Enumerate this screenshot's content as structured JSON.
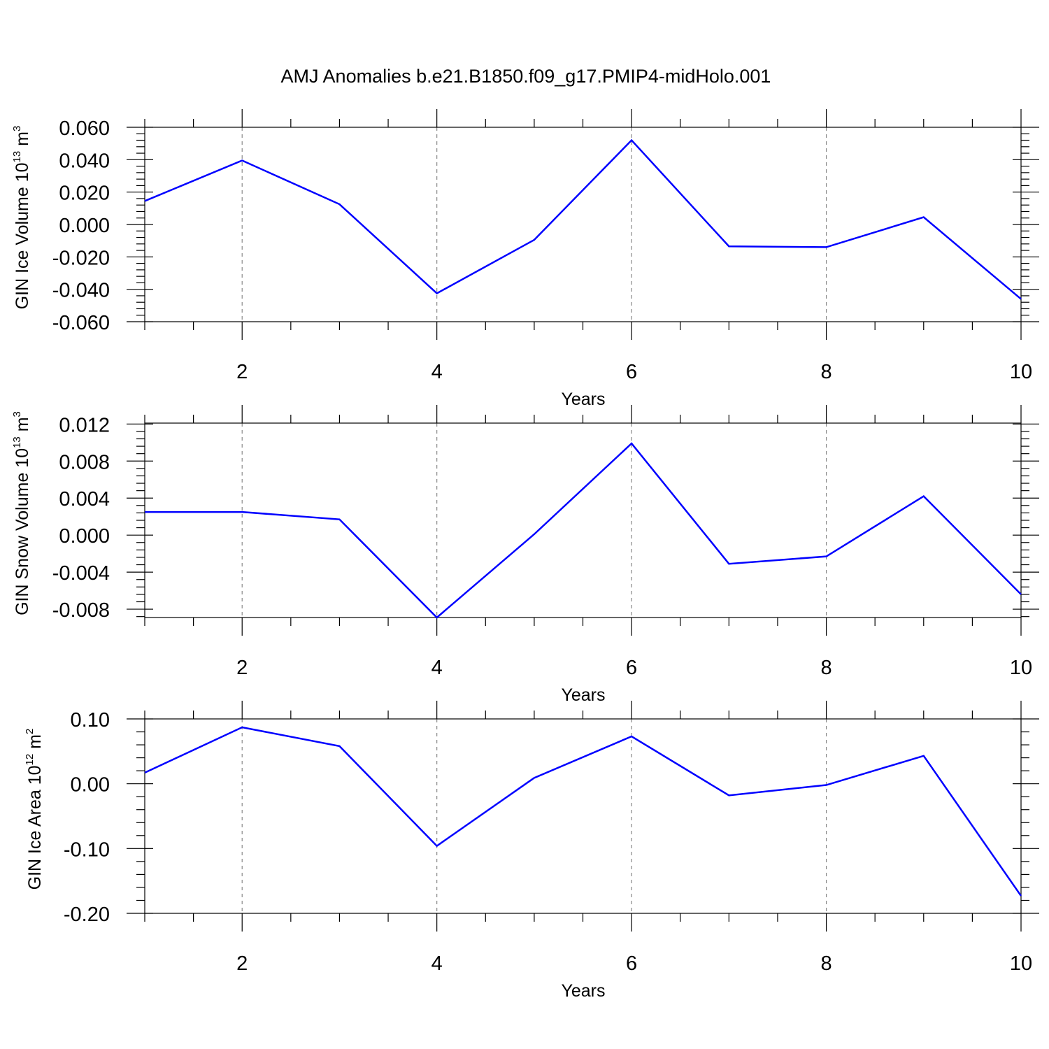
{
  "chart_data": {
    "title": "AMJ Anomalies b.e21.B1850.f09_g17.PMIP4-midHolo.001",
    "panels": [
      {
        "type": "line",
        "ylabel": {
          "text": "GIN Ice Volume 10",
          "sup": "13",
          "unit": " m",
          "unit_sup": "3"
        },
        "xlabel": "Years",
        "x": [
          1,
          2,
          3,
          4,
          5,
          6,
          7,
          8,
          9,
          10
        ],
        "xlim": [
          1,
          10
        ],
        "xticks": [
          2,
          4,
          6,
          8,
          10
        ],
        "xtick_labels": [
          "2",
          "4",
          "6",
          "8",
          "10"
        ],
        "ylim": [
          -0.06,
          0.06
        ],
        "yticks": [
          0.06,
          0.04,
          0.02,
          0.0,
          -0.02,
          -0.04,
          -0.06
        ],
        "ytick_labels": [
          "0.060",
          "0.040",
          "0.020",
          "0.000",
          "-0.020",
          "-0.040",
          "-0.060"
        ],
        "grid": "vertical-dashed",
        "color": "#0000ff",
        "values": [
          0.0145,
          0.0395,
          0.0125,
          -0.0425,
          -0.0095,
          0.052,
          -0.0135,
          -0.014,
          0.0045,
          -0.046
        ]
      },
      {
        "type": "line",
        "ylabel": {
          "text": "GIN Snow Volume 10",
          "sup": "13",
          "unit": " m",
          "unit_sup": "3"
        },
        "xlabel": "Years",
        "x": [
          1,
          2,
          3,
          4,
          5,
          6,
          7,
          8,
          9,
          10
        ],
        "xlim": [
          1,
          10
        ],
        "xticks": [
          2,
          4,
          6,
          8,
          10
        ],
        "xtick_labels": [
          "2",
          "4",
          "6",
          "8",
          "10"
        ],
        "ylim": [
          -0.0089,
          0.0121
        ],
        "yticks": [
          0.012,
          0.008,
          0.004,
          0.0,
          -0.004,
          -0.008
        ],
        "ytick_labels": [
          "0.012",
          "0.008",
          "0.004",
          "0.000",
          "-0.004",
          "-0.008"
        ],
        "grid": "vertical-dashed",
        "color": "#0000ff",
        "values": [
          0.0025,
          0.0025,
          0.0017,
          -0.0089,
          0.0001,
          0.0099,
          -0.0031,
          -0.0023,
          0.0042,
          -0.0064
        ]
      },
      {
        "type": "line",
        "ylabel": {
          "text": "GIN Ice Area 10",
          "sup": "12",
          "unit": " m",
          "unit_sup": "2"
        },
        "xlabel": "Years",
        "x": [
          1,
          2,
          3,
          4,
          5,
          6,
          7,
          8,
          9,
          10
        ],
        "xlim": [
          1,
          10
        ],
        "xticks": [
          2,
          4,
          6,
          8,
          10
        ],
        "xtick_labels": [
          "2",
          "4",
          "6",
          "8",
          "10"
        ],
        "ylim": [
          -0.2,
          0.1
        ],
        "yticks": [
          0.1,
          0.0,
          -0.1,
          -0.2
        ],
        "ytick_labels": [
          "0.10",
          "0.00",
          "-0.10",
          "-0.20"
        ],
        "grid": "vertical-dashed",
        "color": "#0000ff",
        "values": [
          0.017,
          0.087,
          0.058,
          -0.096,
          0.009,
          0.073,
          -0.018,
          -0.002,
          0.043,
          -0.173
        ]
      }
    ]
  }
}
